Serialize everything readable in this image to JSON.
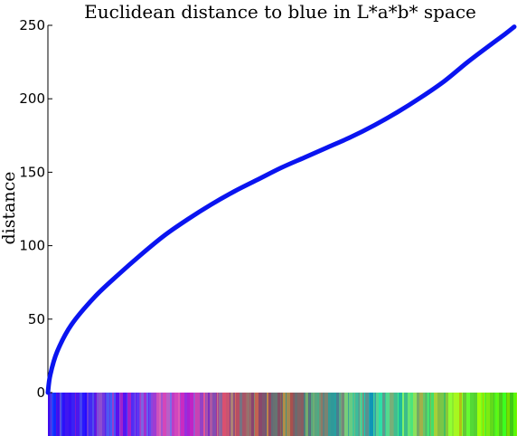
{
  "chart_data": {
    "type": "line",
    "title": "Euclidean distance to blue in L*a*b* space",
    "xlabel": "",
    "ylabel": "distance",
    "ylim": [
      0,
      250
    ],
    "yticks": [
      0,
      50,
      100,
      150,
      200,
      250
    ],
    "xlim": [
      0,
      1
    ],
    "series_color": "#0a14f0",
    "x": [
      0.0,
      0.005,
      0.02,
      0.05,
      0.1,
      0.15,
      0.2,
      0.25,
      0.3,
      0.35,
      0.4,
      0.45,
      0.5,
      0.55,
      0.6,
      0.65,
      0.7,
      0.75,
      0.8,
      0.85,
      0.9,
      0.95,
      0.98,
      1.0
    ],
    "values": [
      0,
      12,
      28,
      46,
      65,
      80,
      94,
      107,
      118,
      128,
      137,
      145,
      153,
      160,
      167,
      174,
      182,
      191,
      201,
      212,
      225,
      237,
      244,
      249
    ],
    "color_strip": {
      "description_colors": [
        "#3a2af0",
        "#5a30e8",
        "#9040d8",
        "#c048c8",
        "#a06070",
        "#807060",
        "#60a080",
        "#40c0a0",
        "#70d060",
        "#80f020",
        "#60e000"
      ],
      "range": [
        -30,
        0
      ]
    }
  }
}
